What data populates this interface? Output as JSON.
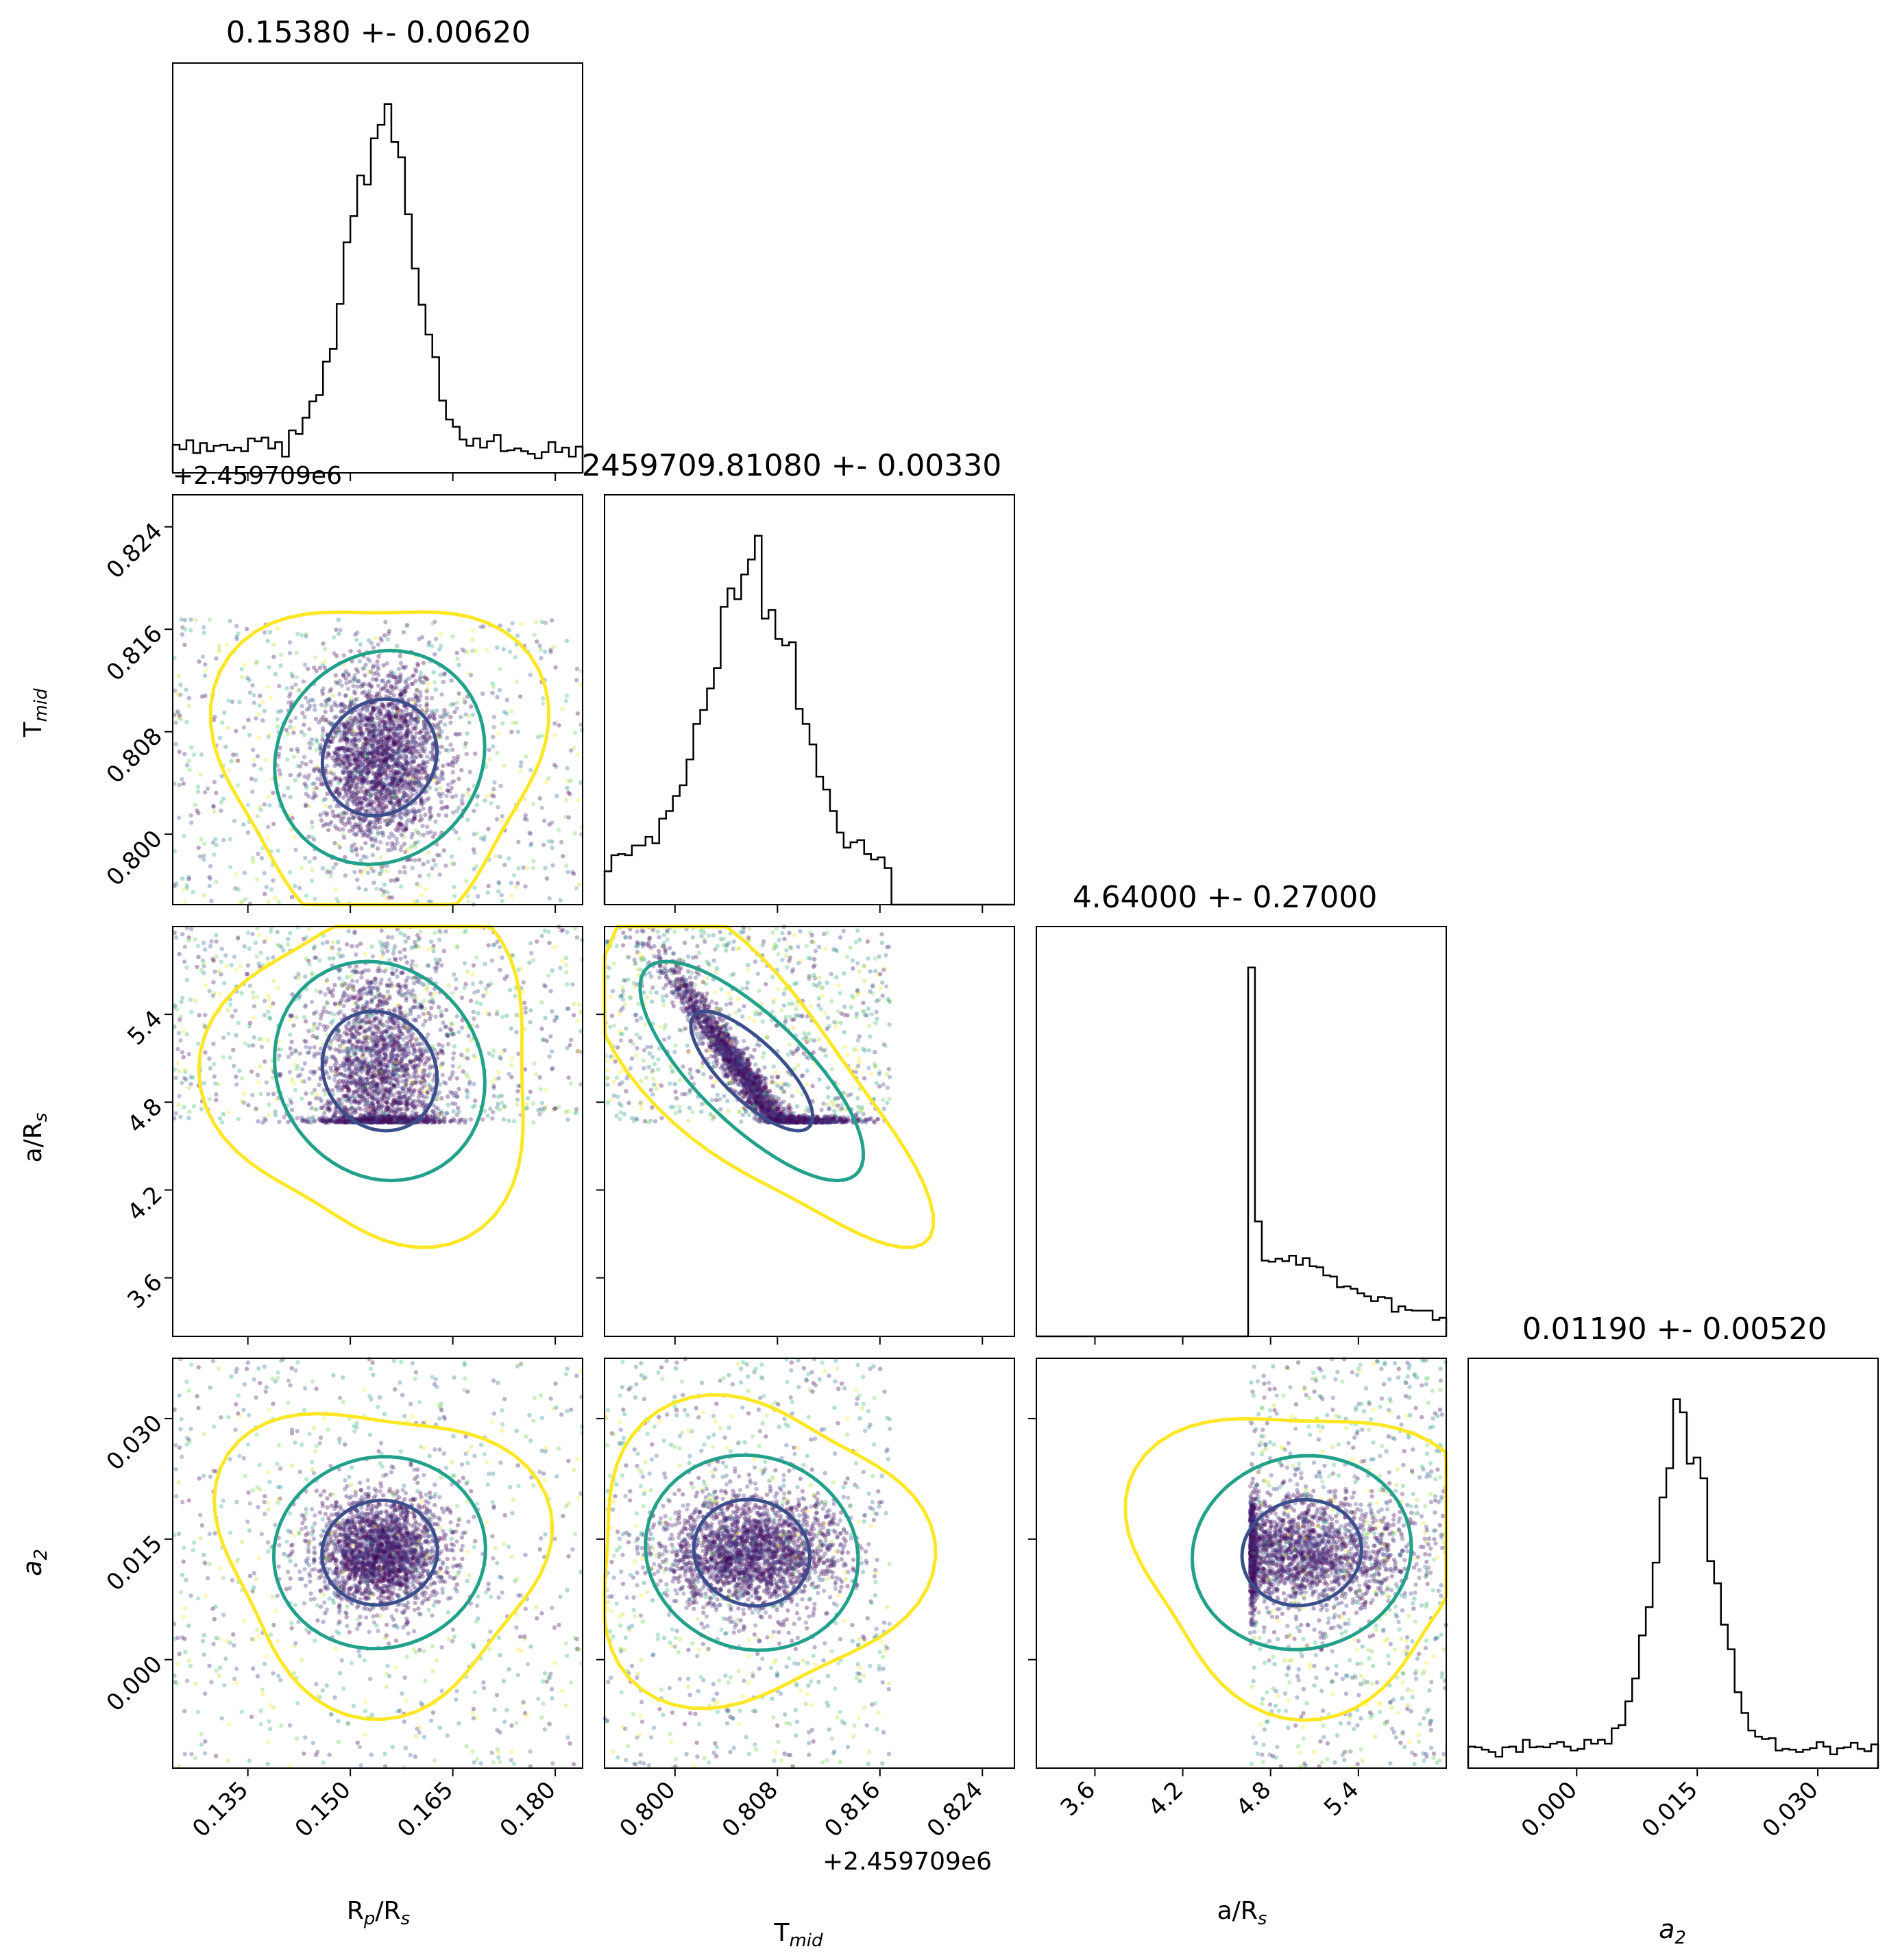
{
  "chart_data": {
    "type": "scatter",
    "subtype": "corner-plot",
    "params": [
      {
        "key": "rp",
        "label_main": "R",
        "label_sub": "p",
        "label_tail": "/R",
        "label_sub2": "s",
        "range": [
          0.124,
          0.184
        ],
        "ticks": [
          "0.135",
          "0.150",
          "0.165",
          "0.180"
        ],
        "tick_values": [
          0.135,
          0.15,
          0.165,
          0.18
        ]
      },
      {
        "key": "tmid",
        "label_main": "T",
        "label_sub": "mid",
        "label_tail": "",
        "label_sub2": "",
        "range": [
          0.7945,
          0.8265
        ],
        "ticks": [
          "0.800",
          "0.808",
          "0.816",
          "0.824"
        ],
        "tick_values": [
          0.8,
          0.808,
          0.816,
          0.824
        ],
        "offset_text": "+2.459709e6"
      },
      {
        "key": "ars",
        "label_main": "a/R",
        "label_sub": "s",
        "label_tail": "",
        "label_sub2": "",
        "range": [
          3.2,
          6.0
        ],
        "ticks": [
          "3.6",
          "4.2",
          "4.8",
          "5.4"
        ],
        "tick_values": [
          3.6,
          4.2,
          4.8,
          5.4
        ]
      },
      {
        "key": "a2",
        "label_main": "a",
        "label_sub": "2",
        "label_tail": "",
        "label_sub2": "",
        "italic": true,
        "range": [
          -0.0135,
          0.0375
        ],
        "ticks": [
          "0.000",
          "0.015",
          "0.030"
        ],
        "tick_values": [
          0.0,
          0.015,
          0.03
        ]
      }
    ],
    "titles": [
      "0.15380 +- 0.00620",
      "2459709.81080 +- 0.00330",
      "4.64000 +- 0.27000",
      "0.01190 +- 0.00520"
    ],
    "offset_text_top": "+2.459709e6",
    "colormap": "viridis",
    "contour_colors": [
      "#3b4e8c",
      "#21a08a",
      "#fde725"
    ],
    "histogram_color": "#000000",
    "grid": false,
    "legend": "none"
  }
}
